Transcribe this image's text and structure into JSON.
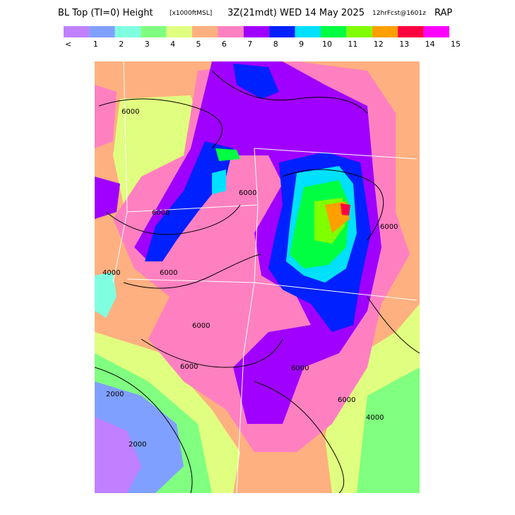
{
  "header": {
    "title": "BL Top (TI=0) Height",
    "units": "[x1000ftMSL]",
    "time": "3Z(21mdt) WED 14 May 2025",
    "forecast": "12hrFcst@1601z",
    "model": "RAP"
  },
  "legend": {
    "labels": [
      "<",
      "1",
      "2",
      "3",
      "4",
      "5",
      "6",
      "7",
      "8",
      "9",
      "10",
      "11",
      "12",
      "13",
      "14",
      "15"
    ],
    "colors": [
      "#c080ff",
      "#80a0ff",
      "#80ffe0",
      "#80ff80",
      "#e0ff80",
      "#ffb080",
      "#ff80c0",
      "#a000ff",
      "#0020ff",
      "#00e0ff",
      "#00ff40",
      "#80ff00",
      "#ffa000",
      "#ff0040",
      "#ff00ff"
    ]
  },
  "map": {
    "contour_labels": [
      "6000",
      "6000",
      "6000",
      "6000",
      "4000",
      "6000",
      "2000",
      "2000",
      "6000",
      "6000",
      "4000",
      "6000",
      "6000"
    ]
  }
}
